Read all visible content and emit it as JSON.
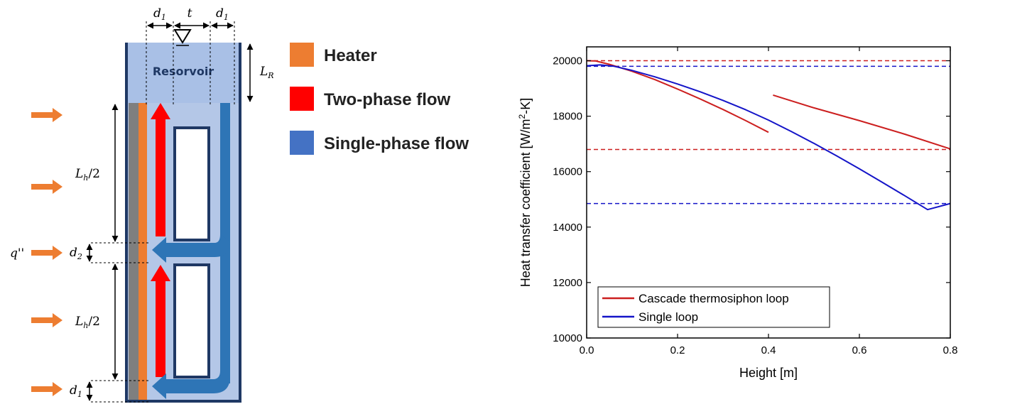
{
  "schematic": {
    "reservoir_label": "Resorvoir",
    "dim_d1_top_left": "d",
    "dim_d1_top_left_sub": "1",
    "dim_t": "t",
    "dim_d1_top_right": "d",
    "dim_d1_top_right_sub": "1",
    "dim_LR": "L",
    "dim_LR_sub": "R",
    "dim_Lh_upper": "L",
    "dim_Lh_upper_sub": "h",
    "dim_Lh_upper_suffix": "/2",
    "dim_Lh_lower": "L",
    "dim_Lh_lower_sub": "h",
    "dim_Lh_lower_suffix": "/2",
    "dim_d2": "d",
    "dim_d2_sub": "2",
    "dim_d1_bottom": "d",
    "dim_d1_bottom_sub": "1",
    "heat_flux_label": "q''",
    "legend": [
      {
        "label": "Heater",
        "color": "#ed7d31"
      },
      {
        "label": "Two-phase flow",
        "color": "#ff0000"
      },
      {
        "label": "Single-phase flow",
        "color": "#4472c4"
      }
    ],
    "colors": {
      "wall": "#1f3864",
      "reservoir_fill": "#b4c7e7",
      "heater": "#ed7d31",
      "heater_back": "#7f7f7f",
      "two_phase": "#ff0000",
      "single_phase": "#2e75b6",
      "heat_arrow": "#ed7d31"
    }
  },
  "chart_data": {
    "type": "line",
    "xlabel": "Height [m]",
    "ylabel": "Heat transfer coefficient [W/m",
    "ylabel_sup": "2",
    "ylabel_suffix": "-K]",
    "xlim": [
      0.0,
      0.8
    ],
    "ylim": [
      10000,
      20500
    ],
    "xticks": [
      0.0,
      0.2,
      0.4,
      0.6,
      0.8
    ],
    "xtick_labels": [
      "0.0",
      "0.2",
      "0.4",
      "0.6",
      "0.8"
    ],
    "yticks": [
      10000,
      12000,
      14000,
      16000,
      18000,
      20000
    ],
    "ytick_labels": [
      "10000",
      "12000",
      "14000",
      "16000",
      "18000",
      "20000"
    ],
    "legend_position": "bottom-left",
    "series": [
      {
        "name": "Cascade thermosiphon loop",
        "color": "#cc1f1f",
        "segments": [
          {
            "x": [
              0.0,
              0.02,
              0.05,
              0.1,
              0.15,
              0.2,
              0.25,
              0.3,
              0.35,
              0.4
            ],
            "y": [
              20000,
              19990,
              19870,
              19620,
              19320,
              18980,
              18620,
              18240,
              17840,
              17420
            ]
          },
          {
            "x": [
              0.41,
              0.5,
              0.6,
              0.7,
              0.8
            ],
            "y": [
              18760,
              18300,
              17840,
              17350,
              16820
            ]
          }
        ]
      },
      {
        "name": "Single loop",
        "color": "#1414c8",
        "segments": [
          {
            "x": [
              0.0,
              0.03,
              0.06,
              0.1,
              0.15,
              0.2,
              0.25,
              0.3,
              0.35,
              0.4,
              0.45,
              0.5,
              0.55,
              0.6,
              0.65,
              0.7,
              0.75,
              0.8
            ],
            "y": [
              19820,
              19850,
              19800,
              19650,
              19420,
              19160,
              18880,
              18570,
              18230,
              17860,
              17450,
              17020,
              16570,
              16100,
              15620,
              15130,
              14630,
              14850
            ]
          }
        ]
      }
    ],
    "reference_lines": [
      {
        "y": 20000,
        "color": "#cc1f1f",
        "style": "dashed"
      },
      {
        "y": 16800,
        "color": "#cc1f1f",
        "style": "dashed"
      },
      {
        "y": 19800,
        "color": "#1414c8",
        "style": "dashed"
      },
      {
        "y": 14850,
        "color": "#1414c8",
        "style": "dashed"
      }
    ]
  }
}
